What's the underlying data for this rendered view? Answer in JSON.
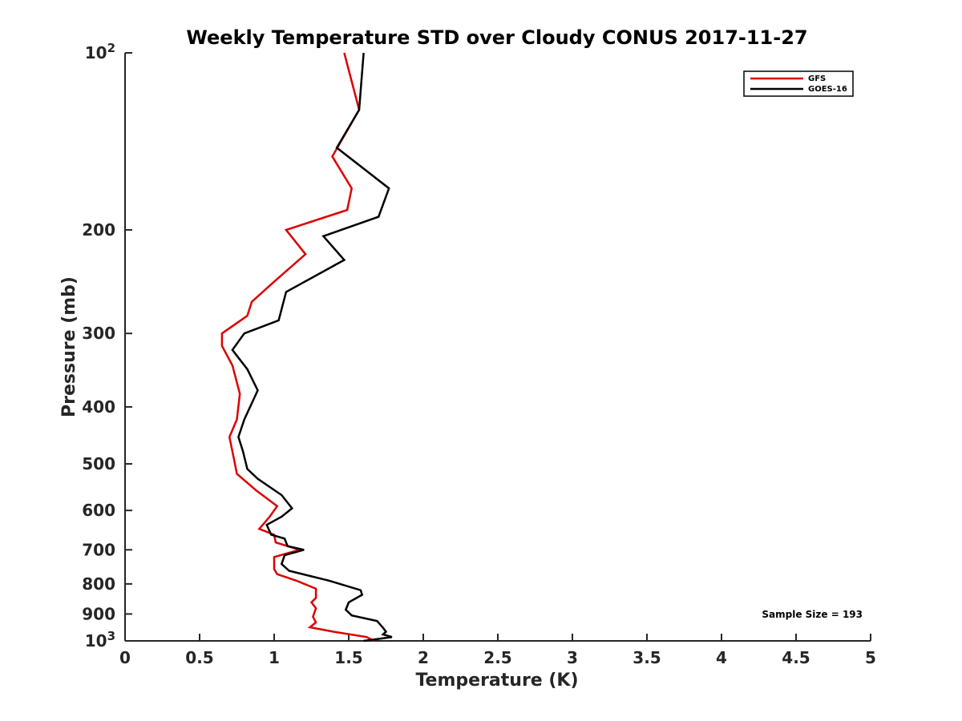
{
  "chart_data": {
    "type": "line",
    "title": "Weekly Temperature STD over Cloudy CONUS 2017-11-27",
    "xlabel": "Temperature (K)",
    "ylabel": "Pressure (mb)",
    "xlim": [
      0,
      5
    ],
    "ylim": [
      100,
      1000
    ],
    "y_scale": "log",
    "y_reversed": true,
    "grid": false,
    "legend_position": "top-right",
    "x_ticks": [
      "0",
      "0.5",
      "1",
      "1.5",
      "2",
      "2.5",
      "3",
      "3.5",
      "4",
      "4.5",
      "5"
    ],
    "x_tick_values": [
      0,
      0.5,
      1,
      1.5,
      2,
      2.5,
      3,
      3.5,
      4,
      4.5,
      5
    ],
    "y_ticks": [
      {
        "value": 100,
        "base": "10",
        "exp": "2"
      },
      {
        "value": 200,
        "label": "200"
      },
      {
        "value": 300,
        "label": "300"
      },
      {
        "value": 400,
        "label": "400"
      },
      {
        "value": 500,
        "label": "500"
      },
      {
        "value": 600,
        "label": "600"
      },
      {
        "value": 700,
        "label": "700"
      },
      {
        "value": 800,
        "label": "800"
      },
      {
        "value": 900,
        "label": "900"
      },
      {
        "value": 1000,
        "base": "10",
        "exp": "3"
      }
    ],
    "annotation": "Sample Size = 193",
    "series": [
      {
        "name": "GFS",
        "color": "#dd0000",
        "points": [
          [
            1.47,
            100
          ],
          [
            1.57,
            125
          ],
          [
            1.39,
            150
          ],
          [
            1.52,
            170
          ],
          [
            1.49,
            185
          ],
          [
            1.08,
            200
          ],
          [
            1.21,
            220
          ],
          [
            1.0,
            245
          ],
          [
            0.85,
            265
          ],
          [
            0.82,
            280
          ],
          [
            0.65,
            300
          ],
          [
            0.65,
            315
          ],
          [
            0.72,
            340
          ],
          [
            0.77,
            380
          ],
          [
            0.75,
            420
          ],
          [
            0.7,
            450
          ],
          [
            0.73,
            490
          ],
          [
            0.75,
            520
          ],
          [
            0.88,
            555
          ],
          [
            1.02,
            590
          ],
          [
            0.97,
            615
          ],
          [
            0.9,
            645
          ],
          [
            1.0,
            660
          ],
          [
            1.01,
            680
          ],
          [
            1.17,
            700
          ],
          [
            1.0,
            720
          ],
          [
            1.0,
            755
          ],
          [
            1.02,
            770
          ],
          [
            1.15,
            790
          ],
          [
            1.28,
            815
          ],
          [
            1.28,
            845
          ],
          [
            1.25,
            860
          ],
          [
            1.28,
            880
          ],
          [
            1.26,
            910
          ],
          [
            1.28,
            930
          ],
          [
            1.24,
            948
          ],
          [
            1.4,
            965
          ],
          [
            1.62,
            985
          ],
          [
            1.67,
            1000
          ]
        ]
      },
      {
        "name": "GOES-16",
        "color": "#000000",
        "points": [
          [
            1.6,
            100
          ],
          [
            1.57,
            125
          ],
          [
            1.42,
            145
          ],
          [
            1.77,
            170
          ],
          [
            1.7,
            190
          ],
          [
            1.33,
            205
          ],
          [
            1.47,
            225
          ],
          [
            1.08,
            255
          ],
          [
            1.03,
            285
          ],
          [
            0.8,
            300
          ],
          [
            0.72,
            320
          ],
          [
            0.82,
            345
          ],
          [
            0.89,
            375
          ],
          [
            0.8,
            420
          ],
          [
            0.76,
            450
          ],
          [
            0.79,
            475
          ],
          [
            0.82,
            510
          ],
          [
            0.89,
            530
          ],
          [
            1.05,
            565
          ],
          [
            1.12,
            595
          ],
          [
            1.05,
            615
          ],
          [
            0.95,
            635
          ],
          [
            0.98,
            660
          ],
          [
            1.07,
            670
          ],
          [
            1.09,
            690
          ],
          [
            1.2,
            700
          ],
          [
            1.07,
            715
          ],
          [
            1.05,
            740
          ],
          [
            1.1,
            760
          ],
          [
            1.37,
            790
          ],
          [
            1.58,
            820
          ],
          [
            1.59,
            835
          ],
          [
            1.5,
            860
          ],
          [
            1.48,
            885
          ],
          [
            1.52,
            905
          ],
          [
            1.69,
            925
          ],
          [
            1.73,
            950
          ],
          [
            1.75,
            965
          ],
          [
            1.73,
            975
          ],
          [
            1.79,
            985
          ],
          [
            1.6,
            1000
          ]
        ]
      }
    ]
  }
}
